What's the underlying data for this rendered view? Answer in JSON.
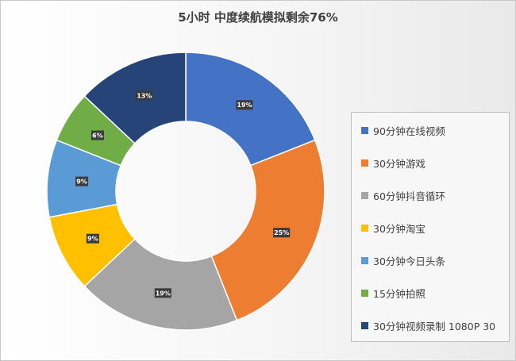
{
  "chart_data": {
    "type": "pie",
    "variant": "donut",
    "title": "5小时 中度续航模拟剩余76%",
    "slices": [
      {
        "name": "90分钟在线视频",
        "value": 19,
        "label": "19%",
        "color": "#4472C4"
      },
      {
        "name": "30分钟游戏",
        "value": 25,
        "label": "25%",
        "color": "#ED7D31"
      },
      {
        "name": "60分钟抖音循环",
        "value": 19,
        "label": "19%",
        "color": "#A5A5A5"
      },
      {
        "name": "30分钟淘宝",
        "value": 9,
        "label": "9%",
        "color": "#FFC000"
      },
      {
        "name": "30分钟今日头条",
        "value": 9,
        "label": "9%",
        "color": "#5B9BD5"
      },
      {
        "name": "15分钟拍照",
        "value": 6,
        "label": "6%",
        "color": "#70AD47"
      },
      {
        "name": "30分钟视频录制 1080P 30",
        "value": 13,
        "label": "13%",
        "color": "#264478"
      }
    ],
    "legend_position": "right"
  }
}
